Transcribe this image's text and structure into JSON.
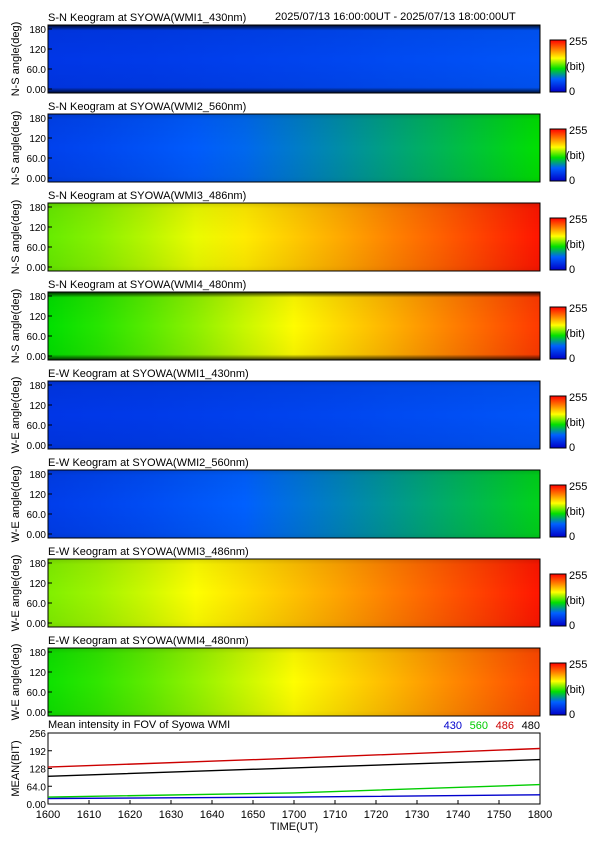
{
  "header": {
    "range": "2025/07/13 16:00:00UT - 2025/07/13 18:00:00UT"
  },
  "colorbar": {
    "max_label": "255",
    "unit_label": "(bit)",
    "min_label": "0"
  },
  "panels": [
    {
      "title": "S-N Keogram at SYOWA(WMI1_430nm)",
      "ylabel": "N-S angle(deg)",
      "intensity_start": 0.14,
      "intensity_end": 0.22,
      "edge_dark": true
    },
    {
      "title": "S-N Keogram at SYOWA(WMI2_560nm)",
      "ylabel": "N-S angle(deg)",
      "intensity_start": 0.17,
      "intensity_end": 0.45,
      "edge_dark": false
    },
    {
      "title": "S-N Keogram at SYOWA(WMI3_486nm)",
      "ylabel": "N-S angle(deg)",
      "intensity_start": 0.53,
      "intensity_end": 0.97,
      "edge_dark": false
    },
    {
      "title": "S-N Keogram at SYOWA(WMI4_480nm)",
      "ylabel": "N-S angle(deg)",
      "intensity_start": 0.45,
      "intensity_end": 0.92,
      "edge_dark": true
    },
    {
      "title": "E-W Keogram at SYOWA(WMI1_430nm)",
      "ylabel": "W-E angle(deg)",
      "intensity_start": 0.14,
      "intensity_end": 0.22,
      "edge_dark": false
    },
    {
      "title": "E-W Keogram at SYOWA(WMI2_560nm)",
      "ylabel": "W-E angle(deg)",
      "intensity_start": 0.16,
      "intensity_end": 0.43,
      "edge_dark": false
    },
    {
      "title": "E-W Keogram at SYOWA(WMI3_486nm)",
      "ylabel": "W-E angle(deg)",
      "intensity_start": 0.55,
      "intensity_end": 0.97,
      "edge_dark": false
    },
    {
      "title": "E-W Keogram at SYOWA(WMI4_480nm)",
      "ylabel": "W-E angle(deg)",
      "intensity_start": 0.46,
      "intensity_end": 0.9,
      "edge_dark": false
    }
  ],
  "chart_data": {
    "type": "line",
    "title": "Mean intensity in FOV of Syowa WMI",
    "xlabel": "TIME(UT)",
    "ylabel": "MEAN(BIT)",
    "x_tick_labels": [
      "1600",
      "1610",
      "1620",
      "1630",
      "1640",
      "1650",
      "1700",
      "1710",
      "1720",
      "1730",
      "1740",
      "1750",
      "1800"
    ],
    "y_tick_labels": [
      "0.00",
      "64.0",
      "128",
      "192",
      "256"
    ],
    "ylim": [
      0,
      256
    ],
    "x_minutes": [
      0,
      120
    ],
    "series": [
      {
        "name": "430",
        "color": "#0000cc",
        "x": [
          0,
          60,
          120
        ],
        "values": [
          20,
          25,
          33
        ]
      },
      {
        "name": "560",
        "color": "#00cc00",
        "x": [
          0,
          60,
          120
        ],
        "values": [
          25,
          40,
          70
        ]
      },
      {
        "name": "486",
        "color": "#cc0000",
        "x": [
          0,
          60,
          120
        ],
        "values": [
          133,
          165,
          200
        ]
      },
      {
        "name": "480",
        "color": "#000000",
        "x": [
          0,
          60,
          120
        ],
        "values": [
          100,
          130,
          160
        ]
      }
    ]
  }
}
